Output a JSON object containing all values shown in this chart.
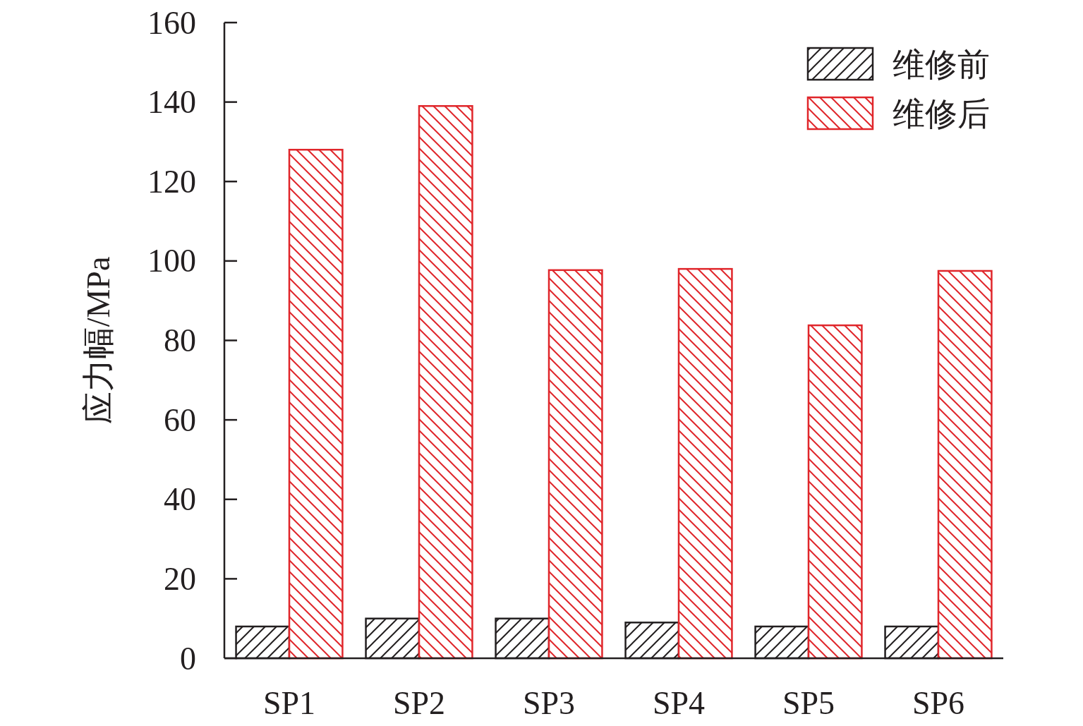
{
  "chart_data": {
    "type": "bar",
    "ylabel": "应力幅/MPa",
    "categories": [
      "SP1",
      "SP2",
      "SP3",
      "SP4",
      "SP5",
      "SP6"
    ],
    "series": [
      {
        "name": "维修前",
        "color": "#231f20",
        "values": [
          8,
          10,
          10,
          9,
          8,
          8
        ]
      },
      {
        "name": "维修后",
        "color": "#e0262b",
        "values": [
          128,
          139,
          97.7,
          98,
          83.8,
          97.5
        ]
      }
    ],
    "ylim": [
      0,
      160
    ],
    "yticks": [
      0,
      20,
      40,
      60,
      80,
      100,
      120,
      140,
      160
    ],
    "grid": false,
    "legend": "top right"
  }
}
